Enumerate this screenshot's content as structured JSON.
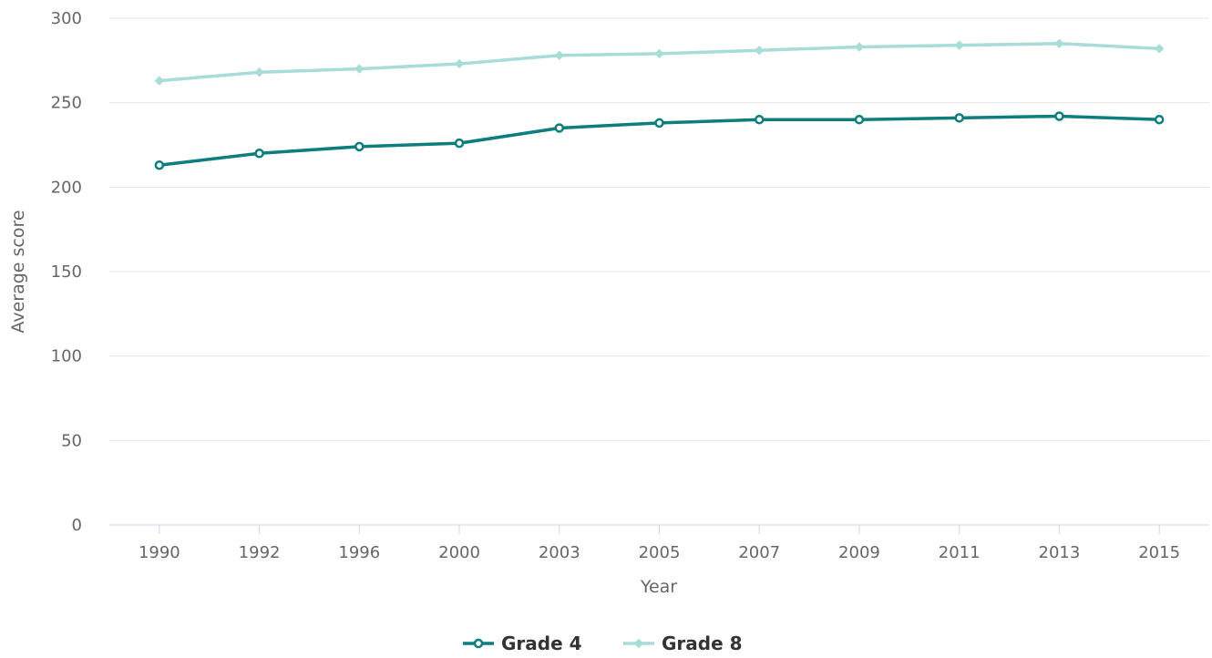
{
  "chart_data": {
    "type": "line",
    "title": "",
    "xlabel": "Year",
    "ylabel": "Average score",
    "categories": [
      "1990",
      "1992",
      "1996",
      "2000",
      "2003",
      "2005",
      "2007",
      "2009",
      "2011",
      "2013",
      "2015"
    ],
    "ylim": [
      0,
      300
    ],
    "yticks": [
      0,
      50,
      100,
      150,
      200,
      250,
      300
    ],
    "grid": true,
    "legend_position": "bottom-center",
    "series": [
      {
        "name": "Grade 4",
        "color": "#0d7d7d",
        "marker": "circle",
        "values": [
          213,
          220,
          224,
          226,
          235,
          238,
          240,
          240,
          241,
          242,
          240
        ]
      },
      {
        "name": "Grade 8",
        "color": "#a8dcd7",
        "marker": "diamond",
        "values": [
          263,
          268,
          270,
          273,
          278,
          279,
          281,
          283,
          284,
          285,
          282
        ]
      }
    ]
  }
}
